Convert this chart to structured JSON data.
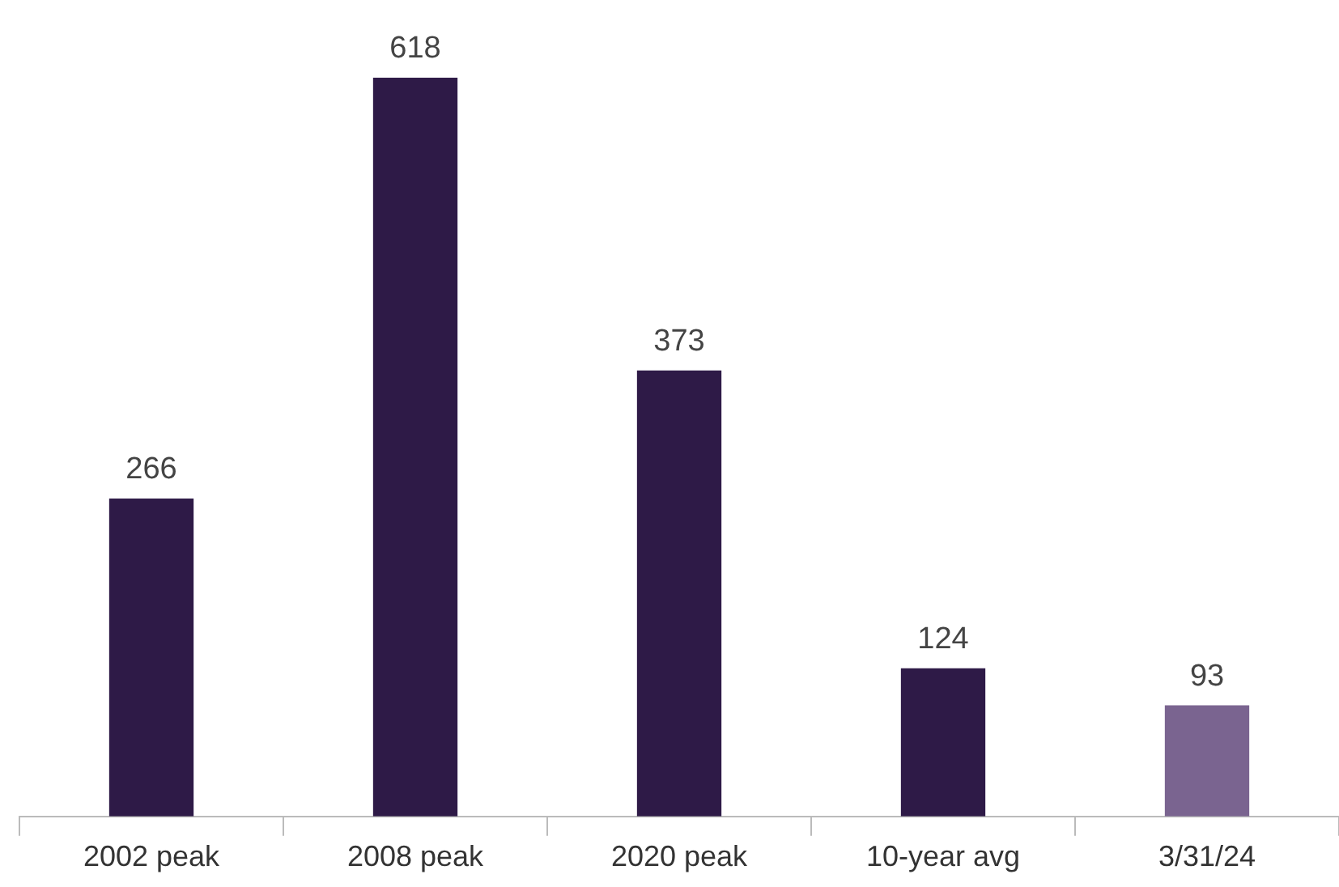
{
  "chart_data": {
    "type": "bar",
    "categories": [
      "2002 peak",
      "2008 peak",
      "2020 peak",
      "10-year avg",
      "3/31/24"
    ],
    "values": [
      266,
      618,
      373,
      124,
      93
    ],
    "colors": [
      "#2e1a47",
      "#2e1a47",
      "#2e1a47",
      "#2e1a47",
      "#7a6490"
    ],
    "data_labels": true
  }
}
